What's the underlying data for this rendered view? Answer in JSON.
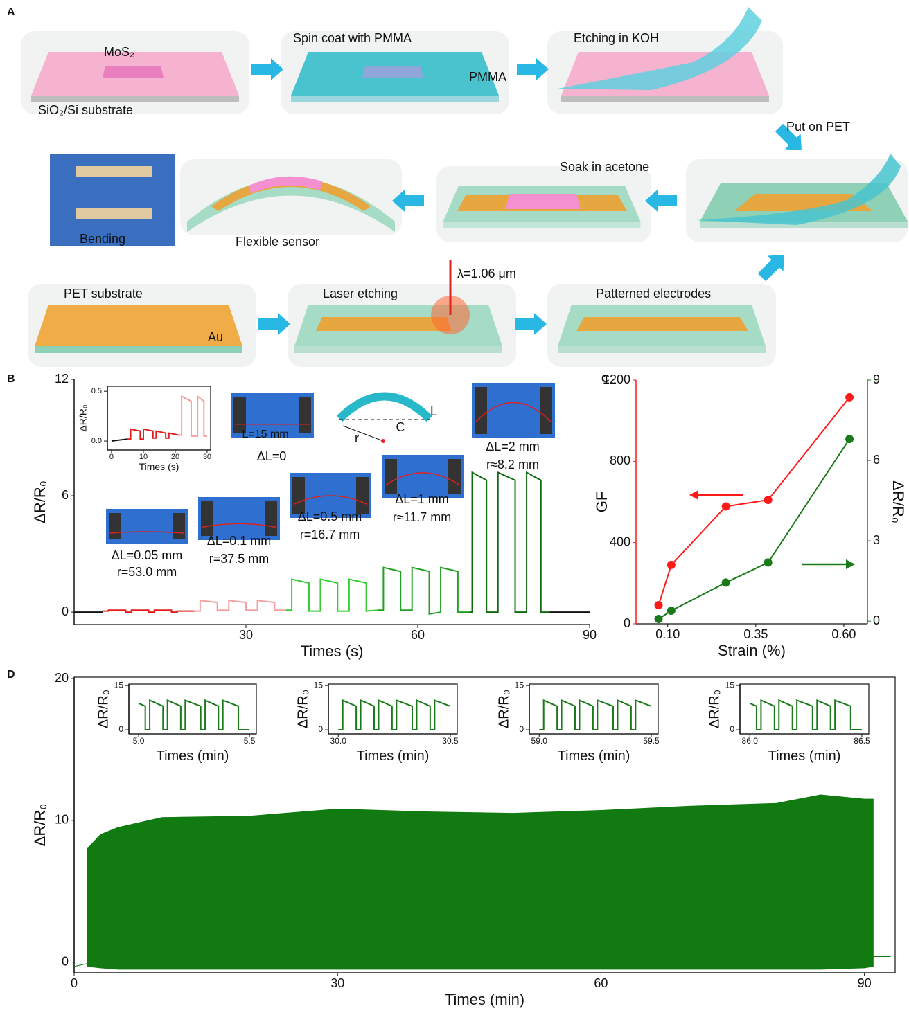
{
  "panel_labels": [
    "A",
    "B",
    "C",
    "D"
  ],
  "schematic": {
    "labels": [
      "MoS₂",
      "SiO₂/Si substrate",
      "Spin coat with PMMA",
      "PMMA",
      "Etching in KOH",
      "Put on PET",
      "Soak in acetone",
      "Bending",
      "Flexible sensor",
      "λ=1.06 μm",
      "PET substrate",
      "Au",
      "Laser etching",
      "Patterned electrodes"
    ]
  },
  "chart_data": [
    {
      "type": "line",
      "xlabel": "Times (s)",
      "ylabel": "ΔR/R₀",
      "xlim": [
        0,
        90
      ],
      "ylim": [
        -0.64,
        12
      ],
      "xticks": [
        30,
        60,
        90
      ],
      "yticks": [
        0,
        6,
        12
      ],
      "annotations": [
        "L=15 mm",
        "ΔL=0",
        "L",
        "C",
        "r",
        "ΔL=2 mm",
        "r≈8.2 mm",
        "ΔL=0.05 mm",
        "r=53.0 mm",
        "ΔL=0.1 mm",
        "r=37.5 mm",
        "ΔL=0.5 mm",
        "r=16.7 mm",
        "ΔL=1 mm",
        "r≈11.7 mm"
      ],
      "series": [
        {
          "color": "#111111",
          "x": [
            0,
            5
          ],
          "values": [
            0,
            0
          ]
        },
        {
          "color": "#e51c1c",
          "x": [
            5,
            6,
            6,
            9,
            9,
            10,
            10,
            13,
            13,
            14,
            14,
            17,
            17,
            18,
            18,
            21
          ],
          "values": [
            0.05,
            0.05,
            0.1,
            0.1,
            0,
            0,
            0.1,
            0.1,
            0,
            0,
            0.1,
            0.1,
            0,
            0,
            0.05,
            0.05
          ]
        },
        {
          "color": "#f4a0a0",
          "x": [
            21,
            22,
            22,
            25,
            25,
            27,
            27,
            30,
            30,
            32,
            32,
            35,
            35,
            37
          ],
          "values": [
            0.05,
            0.05,
            0.6,
            0.5,
            0.1,
            0.1,
            0.6,
            0.5,
            0.1,
            0.1,
            0.6,
            0.5,
            0.1,
            0.1
          ]
        },
        {
          "color": "#33cc33",
          "x": [
            37,
            38,
            38,
            41,
            41,
            43,
            43,
            46,
            46,
            48,
            48,
            51,
            51,
            53
          ],
          "values": [
            0.1,
            0.1,
            1.7,
            1.5,
            0.05,
            0.05,
            1.7,
            1.5,
            0.05,
            0.05,
            1.7,
            1.5,
            0.05,
            0.1
          ]
        },
        {
          "color": "#22a022",
          "x": [
            53,
            54,
            54,
            57,
            57,
            59,
            59,
            62,
            62,
            64,
            64,
            67,
            67,
            69
          ],
          "values": [
            0.1,
            0.1,
            2.3,
            2.1,
            0.1,
            0.1,
            2.3,
            2.1,
            -0.1,
            0,
            2.3,
            2.1,
            0,
            0
          ]
        },
        {
          "color": "#0f6b0f",
          "x": [
            69,
            69.5,
            69.5,
            72,
            72,
            74,
            74,
            77,
            77,
            79,
            79,
            81.5,
            81.5,
            83
          ],
          "values": [
            0,
            0,
            7.2,
            6.8,
            0,
            0,
            7.2,
            6.8,
            0,
            0,
            7.2,
            6.8,
            0,
            0
          ]
        },
        {
          "color": "#111111",
          "x": [
            83,
            90
          ],
          "values": [
            0,
            0
          ]
        }
      ]
    },
    {
      "type": "line",
      "xlabel": "Times (s)",
      "ylabel": "ΔR/R₀",
      "xlim": [
        -1.3,
        31.1
      ],
      "ylim": [
        -0.09,
        0.55
      ],
      "xticks": [
        0,
        10,
        20,
        30
      ],
      "yticks": [
        {
          "value": 0,
          "label": "0.0"
        },
        {
          "value": 0.5,
          "label": "0.5"
        }
      ],
      "series": [
        {
          "color": "#111111",
          "x": [
            0,
            5
          ],
          "values": [
            0,
            0.02
          ]
        },
        {
          "color": "#e51c1c",
          "x": [
            5,
            6,
            6,
            9,
            9,
            10,
            10,
            13,
            13,
            14,
            14,
            17,
            17,
            18,
            18,
            21
          ],
          "values": [
            0.02,
            0.02,
            0.12,
            0.1,
            0.02,
            0.02,
            0.12,
            0.1,
            0.03,
            0.03,
            0.1,
            0.08,
            0.03,
            0.03,
            0.08,
            0.06
          ]
        },
        {
          "color": "#f4a0a0",
          "x": [
            21,
            22,
            22,
            25,
            25,
            27,
            27,
            29,
            29,
            30
          ],
          "values": [
            0.06,
            0.06,
            0.45,
            0.4,
            0.05,
            0.05,
            0.45,
            0.4,
            0.05,
            0.05
          ]
        }
      ]
    },
    {
      "type": "line",
      "markers": true,
      "xlabel": "Strain (%)",
      "ylabel": "GF",
      "y2label": "ΔR/R₀",
      "xlim": [
        0.01,
        0.667
      ],
      "ylim": [
        0,
        1200
      ],
      "y2lim": [
        -0.1,
        9
      ],
      "xticks": [
        {
          "value": 0.1,
          "label": "0.10"
        },
        {
          "value": 0.35,
          "label": "0.35"
        },
        {
          "value": 0.6,
          "label": "0.60"
        }
      ],
      "yticks": [
        0,
        400,
        800,
        1200
      ],
      "y2ticks": [
        0,
        3,
        6,
        9
      ],
      "series": [
        {
          "color": "#ff1a1a",
          "x": [
            0.074,
            0.11,
            0.265,
            0.385,
            0.616
          ],
          "values": [
            92,
            290,
            578,
            610,
            1115
          ]
        },
        {
          "color": "#1a7a1a",
          "axis": "y2",
          "x": [
            0.074,
            0.11,
            0.265,
            0.385,
            0.616
          ],
          "values": [
            0.08,
            0.39,
            1.44,
            2.19,
            6.8
          ]
        }
      ]
    },
    {
      "type": "band",
      "color": "#117a11",
      "xlabel": "Times (min)",
      "ylabel": "ΔR/R₀",
      "xlim": [
        0,
        93.5
      ],
      "ylim": [
        -0.75,
        20.1
      ],
      "xticks": [
        0,
        30,
        60,
        90
      ],
      "yticks": [
        0,
        10,
        20
      ],
      "x": [
        0,
        1.5,
        1.5,
        3,
        5,
        10,
        20,
        30,
        40,
        50,
        60,
        70,
        80,
        85,
        90,
        91,
        91,
        93
      ],
      "upper": [
        -0.3,
        -0.1,
        8,
        9,
        9.5,
        10.2,
        10.3,
        10.8,
        10.6,
        10.5,
        10.7,
        11,
        11.2,
        11.8,
        11.5,
        11.5,
        0.4,
        0.4
      ],
      "lower": [
        -0.3,
        -0.1,
        -0.3,
        -0.4,
        -0.5,
        -0.5,
        -0.5,
        -0.5,
        -0.5,
        -0.5,
        -0.5,
        -0.5,
        -0.5,
        -0.5,
        -0.4,
        -0.3,
        0.4,
        0.4
      ]
    },
    {
      "type": "line",
      "xlabel": "Times (min)",
      "ylabel": "ΔR/R₀",
      "xlim": [
        4.956,
        5.531
      ],
      "ylim": [
        -1.4,
        15.5
      ],
      "xticks": [
        {
          "value": 5,
          "label": "5.0"
        },
        {
          "value": 5.5,
          "label": "5.5"
        }
      ],
      "yticks": [
        0,
        15
      ],
      "series": [
        {
          "color": "#1a7a1a",
          "x": [
            5.0,
            5.03,
            5.03,
            5.05,
            5.05,
            5.11,
            5.11,
            5.13,
            5.13,
            5.19,
            5.19,
            5.21,
            5.21,
            5.28,
            5.28,
            5.3,
            5.3,
            5.36,
            5.36,
            5.38,
            5.38,
            5.45,
            5.45,
            5.5
          ],
          "values": [
            9,
            8,
            0,
            0,
            10,
            8,
            0,
            0,
            10,
            8,
            0,
            0,
            10,
            8,
            0,
            0,
            10,
            8,
            0,
            0,
            10,
            8,
            0,
            0
          ]
        }
      ]
    },
    {
      "type": "line",
      "xlabel": "Times (min)",
      "ylabel": "ΔR/R₀",
      "xlim": [
        29.956,
        30.531
      ],
      "ylim": [
        -1.4,
        15.5
      ],
      "xticks": [
        {
          "value": 30,
          "label": "30.0"
        },
        {
          "value": 30.5,
          "label": "30.5"
        }
      ],
      "yticks": [
        0,
        15
      ],
      "series": [
        {
          "color": "#1a7a1a",
          "x": [
            30.0,
            30.02,
            30.02,
            30.08,
            30.08,
            30.1,
            30.1,
            30.16,
            30.16,
            30.18,
            30.18,
            30.24,
            30.24,
            30.26,
            30.26,
            30.33,
            30.33,
            30.35,
            30.35,
            30.41,
            30.41,
            30.43,
            30.43,
            30.5
          ],
          "values": [
            0,
            0,
            10,
            8,
            0,
            0,
            10,
            8,
            0,
            0,
            10,
            8,
            0,
            0,
            10,
            8,
            0,
            0,
            10,
            8,
            0,
            0,
            10,
            8
          ]
        }
      ]
    },
    {
      "type": "line",
      "xlabel": "Times (min)",
      "ylabel": "ΔR/R₀",
      "xlim": [
        58.956,
        59.531
      ],
      "ylim": [
        -1.4,
        15.5
      ],
      "xticks": [
        {
          "value": 59,
          "label": "59.0"
        },
        {
          "value": 59.5,
          "label": "59.5"
        }
      ],
      "yticks": [
        0,
        15
      ],
      "series": [
        {
          "color": "#1a7a1a",
          "x": [
            59.0,
            59.02,
            59.02,
            59.08,
            59.08,
            59.1,
            59.1,
            59.16,
            59.16,
            59.18,
            59.18,
            59.24,
            59.24,
            59.26,
            59.26,
            59.33,
            59.33,
            59.35,
            59.35,
            59.41,
            59.41,
            59.43,
            59.43,
            59.5
          ],
          "values": [
            0,
            0,
            10,
            8,
            0,
            0,
            10,
            8,
            0,
            0,
            10,
            8,
            0,
            0,
            10,
            8,
            0,
            0,
            10,
            8,
            0,
            0,
            10,
            8
          ]
        }
      ]
    },
    {
      "type": "line",
      "xlabel": "Times (min)",
      "ylabel": "ΔR/R₀",
      "xlim": [
        85.956,
        86.531
      ],
      "ylim": [
        -1.4,
        15.5
      ],
      "xticks": [
        {
          "value": 86,
          "label": "86.0"
        },
        {
          "value": 86.5,
          "label": "86.5"
        }
      ],
      "yticks": [
        0,
        15
      ],
      "series": [
        {
          "color": "#1a7a1a",
          "x": [
            86.0,
            86.03,
            86.03,
            86.05,
            86.05,
            86.11,
            86.11,
            86.13,
            86.13,
            86.19,
            86.19,
            86.21,
            86.21,
            86.28,
            86.28,
            86.3,
            86.3,
            86.36,
            86.36,
            86.38,
            86.38,
            86.45,
            86.45,
            86.5
          ],
          "values": [
            9,
            8,
            0,
            0,
            10,
            8,
            0,
            0,
            10,
            8,
            0,
            0,
            10,
            8,
            0,
            0,
            10,
            8,
            0,
            0,
            10,
            8,
            0,
            0
          ]
        }
      ]
    }
  ]
}
